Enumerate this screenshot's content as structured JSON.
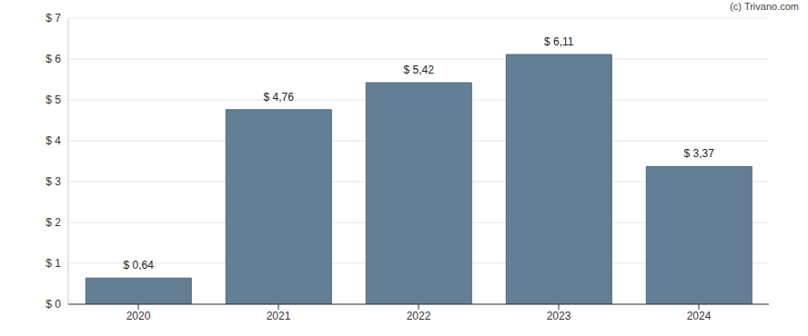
{
  "chart_data": {
    "type": "bar",
    "annotations": [
      "(c) Trivano.com"
    ],
    "categories": [
      "2020",
      "2021",
      "2022",
      "2023",
      "2024"
    ],
    "values": [
      0.64,
      4.76,
      5.42,
      6.11,
      3.37
    ],
    "value_labels": [
      "$ 0,64",
      "$ 4,76",
      "$ 5,42",
      "$ 6,11",
      "$ 3,37"
    ],
    "data_labels": true,
    "color": "#647f94",
    "ylim": [
      0,
      7
    ],
    "yticks": [
      {
        "value": 0,
        "label": "$ 0"
      },
      {
        "value": 1,
        "label": "$ 1"
      },
      {
        "value": 2,
        "label": "$ 2"
      },
      {
        "value": 3,
        "label": "$ 3"
      },
      {
        "value": 4,
        "label": "$ 4"
      },
      {
        "value": 5,
        "label": "$ 5"
      },
      {
        "value": 6,
        "label": "$ 6"
      },
      {
        "value": 7,
        "label": "$ 7"
      }
    ],
    "grid": true
  }
}
